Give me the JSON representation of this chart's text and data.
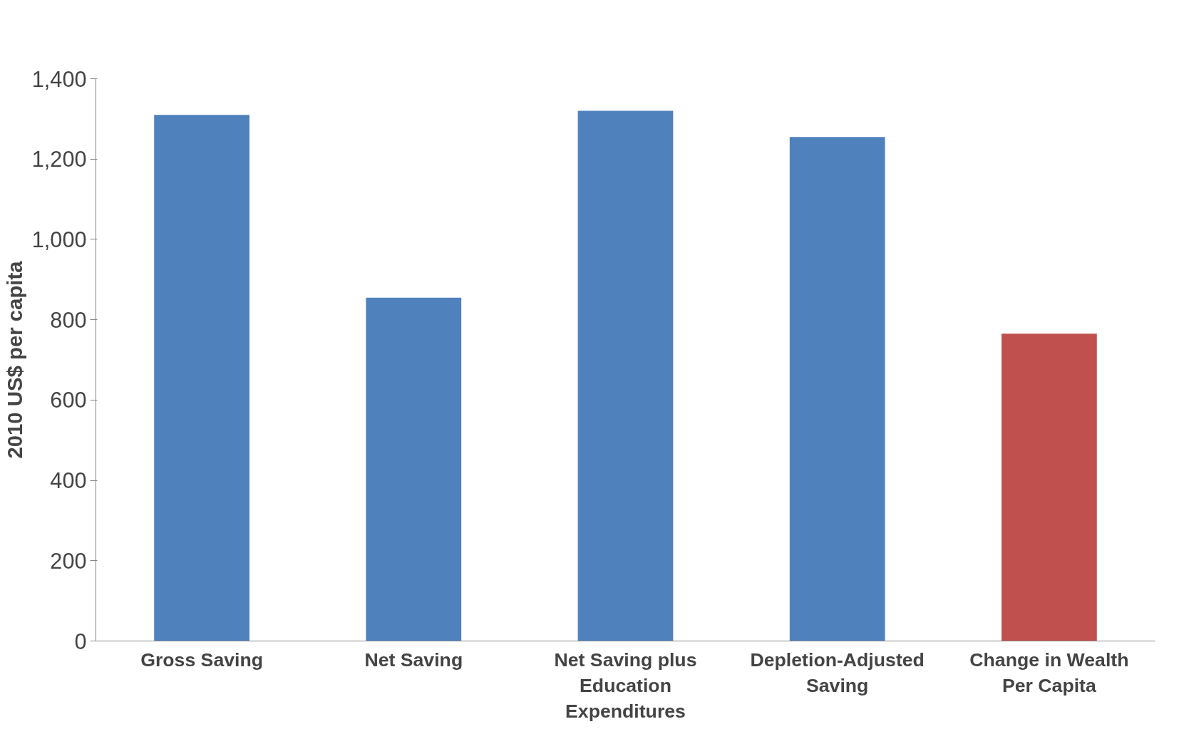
{
  "chart_data": {
    "type": "bar",
    "ylabel": "2010 US$ per capita",
    "categories": [
      "Gross Saving",
      "Net Saving",
      "Net Saving plus Education Expenditures",
      "Depletion-Adjusted Saving",
      "Change in Wealth Per Capita"
    ],
    "values": [
      1310,
      855,
      1320,
      1255,
      765
    ],
    "colors": [
      "#4f81bd",
      "#4f81bd",
      "#4f81bd",
      "#4f81bd",
      "#c0504d"
    ],
    "ylim": [
      0,
      1400
    ],
    "yticks": [
      0,
      200,
      400,
      600,
      800,
      {
        "value": 1000,
        "label": "1,000"
      },
      {
        "value": 1200,
        "label": "1,200"
      },
      {
        "value": 1400,
        "label": "1,400"
      }
    ],
    "grid": false
  }
}
